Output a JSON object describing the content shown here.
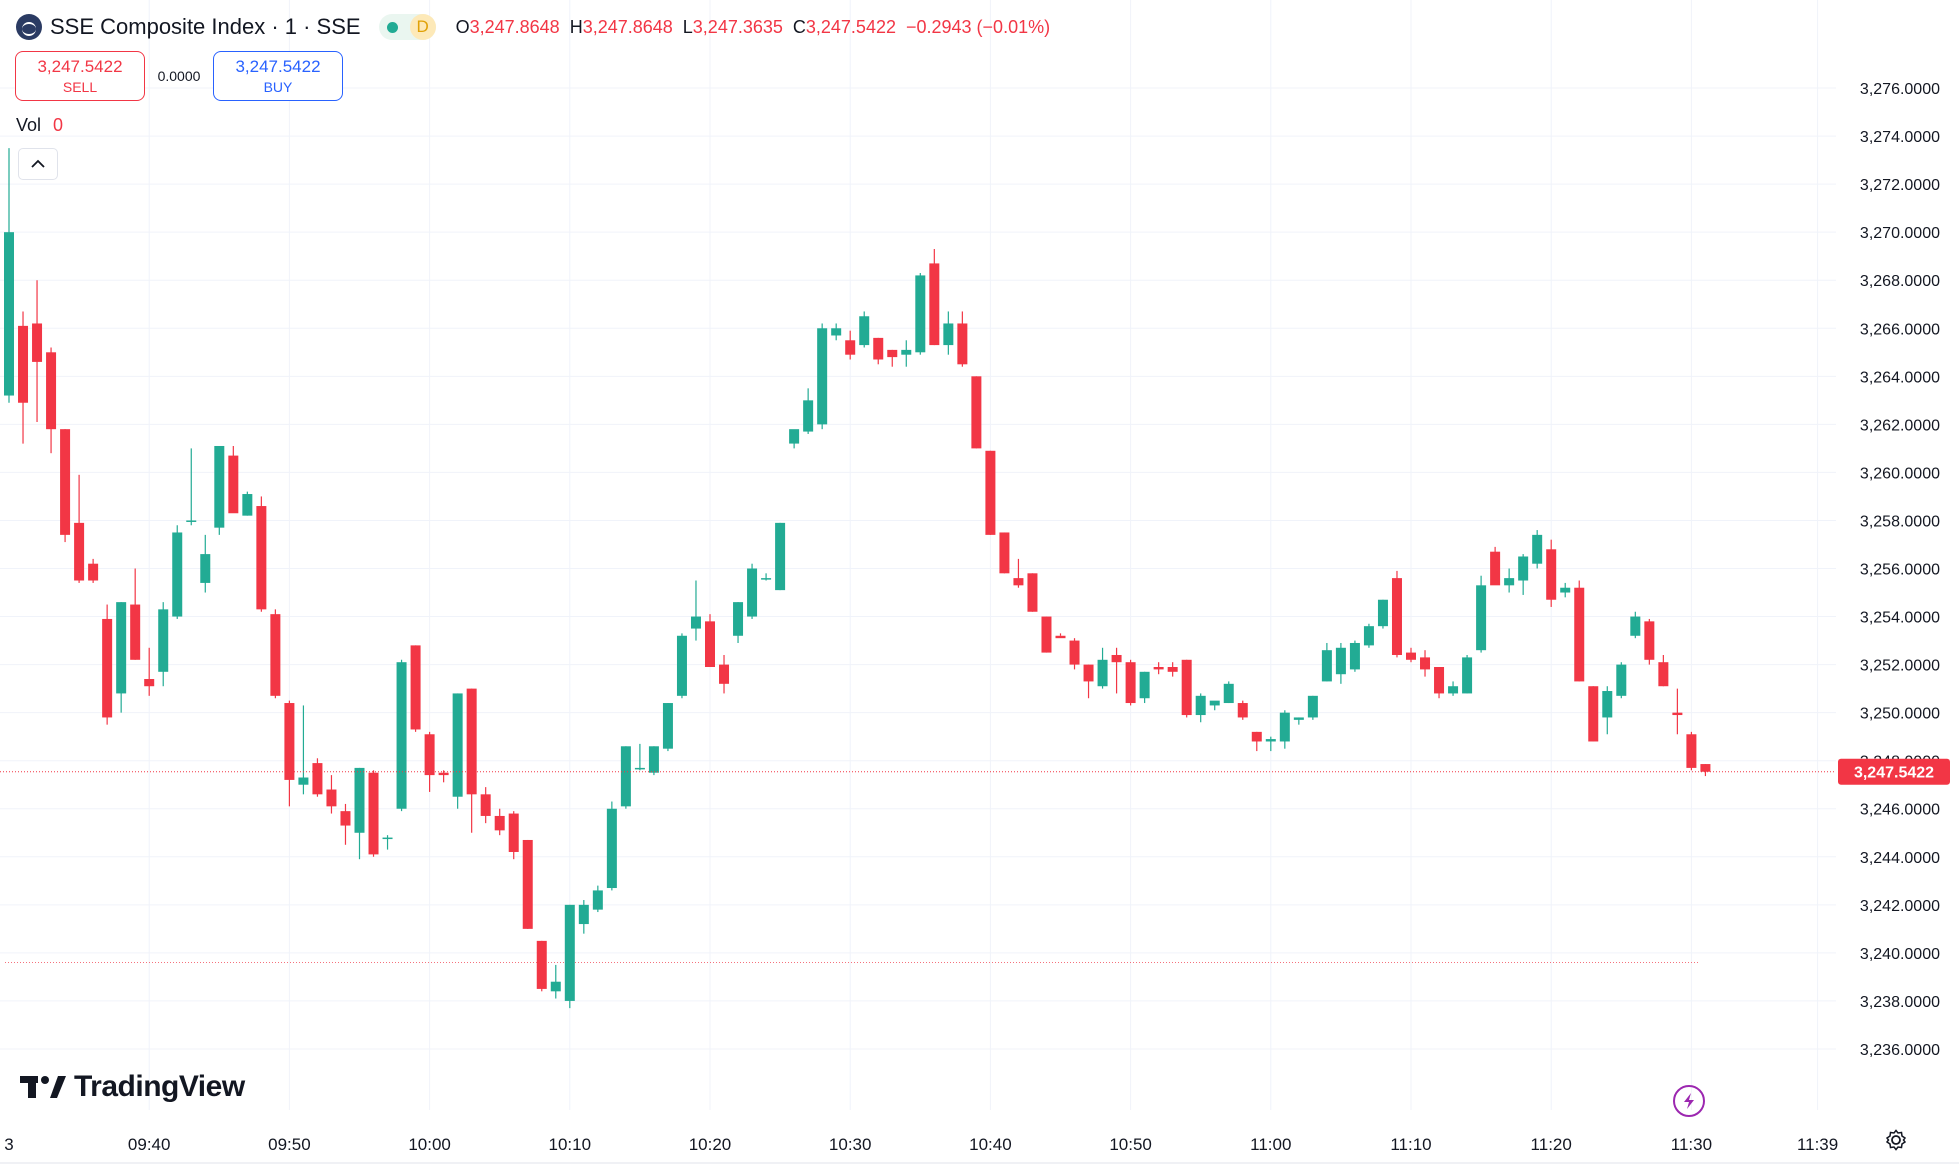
{
  "header": {
    "title": "SSE Composite Index · 1 · SSE",
    "market_badge": "D",
    "ohlc": {
      "o_label": "O",
      "o_value": "3,247.8648",
      "h_label": "H",
      "h_value": "3,247.8648",
      "l_label": "L",
      "l_value": "3,247.3635",
      "c_label": "C",
      "c_value": "3,247.5422",
      "change": "−0.2943 (−0.01%)"
    }
  },
  "trade": {
    "sell_price": "3,247.5422",
    "sell_label": "SELL",
    "spread": "0.0000",
    "buy_price": "3,247.5422",
    "buy_label": "BUY"
  },
  "volume": {
    "label": "Vol",
    "value": "0"
  },
  "branding": {
    "logo_text": "TradingView"
  },
  "colors": {
    "up": "#22ab94",
    "down": "#f23645",
    "axis_text": "#131722",
    "grid": "#f0f3fa"
  },
  "chart_data": {
    "type": "candlestick",
    "y_axis": {
      "min": 3235.0,
      "max": 3277.5,
      "ticks": [
        3276,
        3274,
        3272,
        3270,
        3268,
        3266,
        3264,
        3262,
        3260,
        3258,
        3256,
        3254,
        3252,
        3250,
        3248,
        3246,
        3244,
        3242,
        3240,
        3238,
        3236
      ],
      "tick_labels": [
        "3,276.0000",
        "3,274.0000",
        "3,272.0000",
        "3,270.0000",
        "3,268.0000",
        "3,266.0000",
        "3,264.0000",
        "3,262.0000",
        "3,260.0000",
        "3,258.0000",
        "3,256.0000",
        "3,254.0000",
        "3,252.0000",
        "3,250.0000",
        "3,248.0000",
        "3,246.0000",
        "3,244.0000",
        "3,242.0000",
        "3,240.0000",
        "3,238.0000",
        "3,236.0000"
      ]
    },
    "x_axis": {
      "tick_labels": [
        "3",
        "09:40",
        "09:50",
        "10:00",
        "10:10",
        "10:20",
        "10:30",
        "10:40",
        "10:50",
        "11:00",
        "11:10",
        "11:20",
        "11:30",
        "11:39"
      ],
      "tick_minutes": [
        0,
        10,
        20,
        30,
        40,
        50,
        60,
        70,
        80,
        90,
        100,
        110,
        120,
        129
      ]
    },
    "last_price": 3247.5422,
    "last_price_label": "3,247.5422",
    "reference_line": 3239.6,
    "candles": [
      {
        "o": 3263.2,
        "h": 3273.5,
        "l": 3262.9,
        "c": 3270.0
      },
      {
        "o": 3266.1,
        "h": 3266.7,
        "l": 3261.2,
        "c": 3262.9
      },
      {
        "o": 3266.2,
        "h": 3268.0,
        "l": 3262.1,
        "c": 3264.6
      },
      {
        "o": 3265.0,
        "h": 3265.2,
        "l": 3260.8,
        "c": 3261.8
      },
      {
        "o": 3261.8,
        "h": 3261.8,
        "l": 3257.1,
        "c": 3257.4
      },
      {
        "o": 3257.9,
        "h": 3259.9,
        "l": 3255.4,
        "c": 3255.5
      },
      {
        "o": 3256.2,
        "h": 3256.4,
        "l": 3255.4,
        "c": 3255.5
      },
      {
        "o": 3253.9,
        "h": 3254.5,
        "l": 3249.5,
        "c": 3249.8
      },
      {
        "o": 3250.8,
        "h": 3254.6,
        "l": 3250.0,
        "c": 3254.6
      },
      {
        "o": 3254.5,
        "h": 3256.0,
        "l": 3252.2,
        "c": 3252.2
      },
      {
        "o": 3251.4,
        "h": 3252.7,
        "l": 3250.7,
        "c": 3251.1
      },
      {
        "o": 3251.7,
        "h": 3254.6,
        "l": 3251.1,
        "c": 3254.3
      },
      {
        "o": 3254.0,
        "h": 3257.8,
        "l": 3253.9,
        "c": 3257.5
      },
      {
        "o": 3258.0,
        "h": 3261.0,
        "l": 3257.8,
        "c": 3258.0
      },
      {
        "o": 3255.4,
        "h": 3257.4,
        "l": 3255.0,
        "c": 3256.6
      },
      {
        "o": 3257.7,
        "h": 3261.1,
        "l": 3257.4,
        "c": 3261.1
      },
      {
        "o": 3260.7,
        "h": 3261.1,
        "l": 3258.4,
        "c": 3258.3
      },
      {
        "o": 3258.2,
        "h": 3259.2,
        "l": 3258.2,
        "c": 3259.1
      },
      {
        "o": 3258.6,
        "h": 3259.0,
        "l": 3254.2,
        "c": 3254.3
      },
      {
        "o": 3254.1,
        "h": 3254.3,
        "l": 3250.6,
        "c": 3250.7
      },
      {
        "o": 3250.4,
        "h": 3250.5,
        "l": 3246.1,
        "c": 3247.2
      },
      {
        "o": 3247.0,
        "h": 3250.3,
        "l": 3246.6,
        "c": 3247.3
      },
      {
        "o": 3247.9,
        "h": 3248.1,
        "l": 3246.5,
        "c": 3246.6
      },
      {
        "o": 3246.8,
        "h": 3247.4,
        "l": 3245.8,
        "c": 3246.1
      },
      {
        "o": 3245.9,
        "h": 3246.2,
        "l": 3244.5,
        "c": 3245.3
      },
      {
        "o": 3245.0,
        "h": 3247.7,
        "l": 3243.9,
        "c": 3247.7
      },
      {
        "o": 3247.5,
        "h": 3247.6,
        "l": 3244.0,
        "c": 3244.1
      },
      {
        "o": 3244.8,
        "h": 3244.9,
        "l": 3244.3,
        "c": 3244.8
      },
      {
        "o": 3246.0,
        "h": 3252.2,
        "l": 3245.9,
        "c": 3252.1
      },
      {
        "o": 3252.8,
        "h": 3252.8,
        "l": 3249.2,
        "c": 3249.3
      },
      {
        "o": 3249.1,
        "h": 3249.2,
        "l": 3246.7,
        "c": 3247.4
      },
      {
        "o": 3247.5,
        "h": 3247.6,
        "l": 3247.1,
        "c": 3247.4
      },
      {
        "o": 3246.5,
        "h": 3250.8,
        "l": 3246.0,
        "c": 3250.8
      },
      {
        "o": 3251.0,
        "h": 3251.0,
        "l": 3245.0,
        "c": 3246.6
      },
      {
        "o": 3246.6,
        "h": 3246.9,
        "l": 3245.4,
        "c": 3245.7
      },
      {
        "o": 3245.7,
        "h": 3246.0,
        "l": 3244.9,
        "c": 3245.1
      },
      {
        "o": 3245.8,
        "h": 3245.9,
        "l": 3243.9,
        "c": 3244.2
      },
      {
        "o": 3244.7,
        "h": 3244.7,
        "l": 3241.0,
        "c": 3241.0
      },
      {
        "o": 3240.5,
        "h": 3240.5,
        "l": 3238.4,
        "c": 3238.5
      },
      {
        "o": 3238.4,
        "h": 3239.5,
        "l": 3238.1,
        "c": 3238.8
      },
      {
        "o": 3238.0,
        "h": 3242.0,
        "l": 3237.7,
        "c": 3242.0
      },
      {
        "o": 3241.2,
        "h": 3242.2,
        "l": 3240.8,
        "c": 3242.0
      },
      {
        "o": 3241.8,
        "h": 3242.8,
        "l": 3241.7,
        "c": 3242.6
      },
      {
        "o": 3242.7,
        "h": 3246.3,
        "l": 3242.6,
        "c": 3246.0
      },
      {
        "o": 3246.1,
        "h": 3248.6,
        "l": 3246.0,
        "c": 3248.6
      },
      {
        "o": 3247.7,
        "h": 3248.7,
        "l": 3247.6,
        "c": 3247.7
      },
      {
        "o": 3247.5,
        "h": 3248.6,
        "l": 3247.4,
        "c": 3248.6
      },
      {
        "o": 3248.5,
        "h": 3250.4,
        "l": 3248.4,
        "c": 3250.4
      },
      {
        "o": 3250.7,
        "h": 3253.3,
        "l": 3250.6,
        "c": 3253.2
      },
      {
        "o": 3253.5,
        "h": 3255.5,
        "l": 3253.0,
        "c": 3254.0
      },
      {
        "o": 3253.8,
        "h": 3254.1,
        "l": 3251.9,
        "c": 3251.9
      },
      {
        "o": 3252.0,
        "h": 3252.4,
        "l": 3250.8,
        "c": 3251.2
      },
      {
        "o": 3253.2,
        "h": 3254.6,
        "l": 3252.9,
        "c": 3254.6
      },
      {
        "o": 3254.0,
        "h": 3256.2,
        "l": 3253.9,
        "c": 3256.0
      },
      {
        "o": 3255.6,
        "h": 3255.8,
        "l": 3255.5,
        "c": 3255.6
      },
      {
        "o": 3255.1,
        "h": 3257.9,
        "l": 3255.1,
        "c": 3257.9
      },
      {
        "o": 3261.2,
        "h": 3261.5,
        "l": 3261.0,
        "c": 3261.8
      },
      {
        "o": 3261.7,
        "h": 3263.5,
        "l": 3261.6,
        "c": 3263.0
      },
      {
        "o": 3262.0,
        "h": 3266.2,
        "l": 3261.8,
        "c": 3266.0
      },
      {
        "o": 3265.7,
        "h": 3266.2,
        "l": 3265.5,
        "c": 3266.0
      },
      {
        "o": 3265.5,
        "h": 3265.9,
        "l": 3264.7,
        "c": 3264.9
      },
      {
        "o": 3265.3,
        "h": 3266.7,
        "l": 3265.2,
        "c": 3266.5
      },
      {
        "o": 3265.6,
        "h": 3265.6,
        "l": 3264.5,
        "c": 3264.7
      },
      {
        "o": 3265.1,
        "h": 3265.1,
        "l": 3264.4,
        "c": 3264.8
      },
      {
        "o": 3264.9,
        "h": 3265.5,
        "l": 3264.4,
        "c": 3265.1
      },
      {
        "o": 3265.0,
        "h": 3268.3,
        "l": 3264.9,
        "c": 3268.2
      },
      {
        "o": 3268.7,
        "h": 3269.3,
        "l": 3265.3,
        "c": 3265.3
      },
      {
        "o": 3265.3,
        "h": 3266.7,
        "l": 3264.9,
        "c": 3266.2
      },
      {
        "o": 3266.2,
        "h": 3266.7,
        "l": 3264.4,
        "c": 3264.5
      },
      {
        "o": 3264.0,
        "h": 3264.0,
        "l": 3261.0,
        "c": 3261.0
      },
      {
        "o": 3260.9,
        "h": 3260.9,
        "l": 3257.4,
        "c": 3257.4
      },
      {
        "o": 3257.5,
        "h": 3257.5,
        "l": 3255.8,
        "c": 3255.8
      },
      {
        "o": 3255.6,
        "h": 3256.4,
        "l": 3255.2,
        "c": 3255.3
      },
      {
        "o": 3255.8,
        "h": 3255.8,
        "l": 3254.2,
        "c": 3254.2
      },
      {
        "o": 3254.0,
        "h": 3254.0,
        "l": 3252.5,
        "c": 3252.5
      },
      {
        "o": 3253.2,
        "h": 3253.3,
        "l": 3253.2,
        "c": 3253.1
      },
      {
        "o": 3253.0,
        "h": 3253.1,
        "l": 3251.8,
        "c": 3252.0
      },
      {
        "o": 3252.0,
        "h": 3252.0,
        "l": 3250.6,
        "c": 3251.3
      },
      {
        "o": 3251.1,
        "h": 3252.7,
        "l": 3251.0,
        "c": 3252.2
      },
      {
        "o": 3252.4,
        "h": 3252.7,
        "l": 3250.8,
        "c": 3252.1
      },
      {
        "o": 3252.1,
        "h": 3252.2,
        "l": 3250.3,
        "c": 3250.4
      },
      {
        "o": 3250.6,
        "h": 3251.7,
        "l": 3250.4,
        "c": 3251.7
      },
      {
        "o": 3251.9,
        "h": 3252.1,
        "l": 3251.6,
        "c": 3251.8
      },
      {
        "o": 3251.9,
        "h": 3252.1,
        "l": 3251.5,
        "c": 3251.7
      },
      {
        "o": 3252.2,
        "h": 3252.2,
        "l": 3249.8,
        "c": 3249.9
      },
      {
        "o": 3249.9,
        "h": 3250.8,
        "l": 3249.6,
        "c": 3250.7
      },
      {
        "o": 3250.3,
        "h": 3250.4,
        "l": 3250.1,
        "c": 3250.5
      },
      {
        "o": 3250.4,
        "h": 3251.3,
        "l": 3250.4,
        "c": 3251.2
      },
      {
        "o": 3250.4,
        "h": 3250.5,
        "l": 3249.7,
        "c": 3249.8
      },
      {
        "o": 3249.2,
        "h": 3249.2,
        "l": 3248.4,
        "c": 3248.8
      },
      {
        "o": 3248.8,
        "h": 3249.0,
        "l": 3248.4,
        "c": 3248.9
      },
      {
        "o": 3248.8,
        "h": 3250.1,
        "l": 3248.5,
        "c": 3250.0
      },
      {
        "o": 3249.7,
        "h": 3249.8,
        "l": 3249.5,
        "c": 3249.8
      },
      {
        "o": 3249.8,
        "h": 3250.7,
        "l": 3249.7,
        "c": 3250.7
      },
      {
        "o": 3251.3,
        "h": 3252.9,
        "l": 3251.3,
        "c": 3252.6
      },
      {
        "o": 3251.6,
        "h": 3252.9,
        "l": 3251.2,
        "c": 3252.7
      },
      {
        "o": 3251.8,
        "h": 3253.0,
        "l": 3251.7,
        "c": 3252.9
      },
      {
        "o": 3252.8,
        "h": 3253.7,
        "l": 3252.7,
        "c": 3253.6
      },
      {
        "o": 3253.6,
        "h": 3254.7,
        "l": 3253.5,
        "c": 3254.7
      },
      {
        "o": 3255.6,
        "h": 3255.9,
        "l": 3252.3,
        "c": 3252.4
      },
      {
        "o": 3252.5,
        "h": 3252.7,
        "l": 3252.1,
        "c": 3252.2
      },
      {
        "o": 3252.3,
        "h": 3252.6,
        "l": 3251.5,
        "c": 3251.8
      },
      {
        "o": 3251.9,
        "h": 3251.9,
        "l": 3250.6,
        "c": 3250.8
      },
      {
        "o": 3250.8,
        "h": 3251.3,
        "l": 3250.7,
        "c": 3251.1
      },
      {
        "o": 3250.8,
        "h": 3252.4,
        "l": 3250.8,
        "c": 3252.3
      },
      {
        "o": 3252.6,
        "h": 3255.7,
        "l": 3252.5,
        "c": 3255.3
      },
      {
        "o": 3256.7,
        "h": 3256.9,
        "l": 3255.4,
        "c": 3255.3
      },
      {
        "o": 3255.3,
        "h": 3256.0,
        "l": 3255.0,
        "c": 3255.6
      },
      {
        "o": 3255.5,
        "h": 3256.6,
        "l": 3254.9,
        "c": 3256.5
      },
      {
        "o": 3256.2,
        "h": 3257.6,
        "l": 3256.0,
        "c": 3257.4
      },
      {
        "o": 3256.8,
        "h": 3257.2,
        "l": 3254.4,
        "c": 3254.7
      },
      {
        "o": 3255.0,
        "h": 3255.4,
        "l": 3254.8,
        "c": 3255.2
      },
      {
        "o": 3255.2,
        "h": 3255.5,
        "l": 3251.3,
        "c": 3251.3
      },
      {
        "o": 3251.1,
        "h": 3251.1,
        "l": 3248.8,
        "c": 3248.8
      },
      {
        "o": 3249.8,
        "h": 3251.1,
        "l": 3249.1,
        "c": 3250.9
      },
      {
        "o": 3250.7,
        "h": 3252.1,
        "l": 3250.6,
        "c": 3252.0
      },
      {
        "o": 3253.2,
        "h": 3254.2,
        "l": 3253.1,
        "c": 3254.0
      },
      {
        "o": 3253.8,
        "h": 3253.9,
        "l": 3252.0,
        "c": 3252.2
      },
      {
        "o": 3252.1,
        "h": 3252.4,
        "l": 3251.1,
        "c": 3251.1
      },
      {
        "o": 3250.0,
        "h": 3251.0,
        "l": 3249.1,
        "c": 3249.9
      },
      {
        "o": 3249.1,
        "h": 3249.2,
        "l": 3247.6,
        "c": 3247.7
      },
      {
        "o": 3247.86,
        "h": 3247.86,
        "l": 3247.36,
        "c": 3247.54
      }
    ]
  }
}
